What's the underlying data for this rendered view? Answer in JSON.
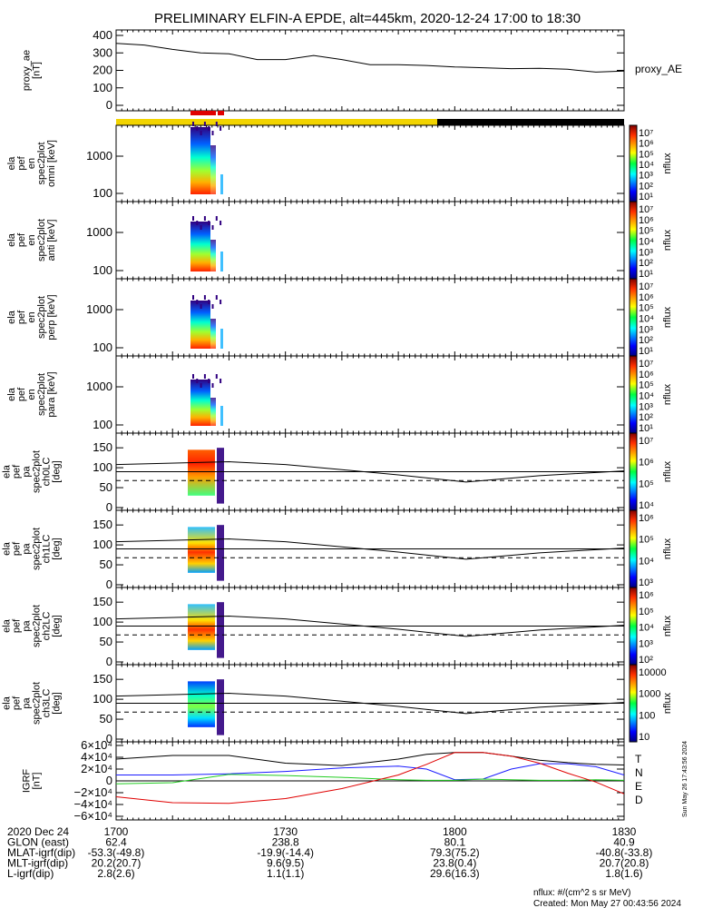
{
  "title": "PRELIMINARY ELFIN-A EPDE, alt=445km, 2020-12-24 17:00 to 18:30",
  "colors": {
    "background": "#ffffff",
    "axis": "#000000",
    "status_yellow": "#f2d400",
    "status_black": "#000000",
    "status_red": "#e00000",
    "igrf_t": "#000000",
    "igrf_n": "#1a1aff",
    "igrf_e": "#22cc22",
    "igrf_d": "#e00000"
  },
  "proxy_ae": {
    "ylabel": "proxy_ae [nT]",
    "legend": "proxy_AE",
    "yticks": [
      "400",
      "300",
      "200",
      "100",
      "0"
    ]
  },
  "spectral_panels": [
    {
      "ylabel": "ela pef en spec2plot omni [keV]",
      "yticks": [
        "1000",
        "100"
      ],
      "colorbar_label": "nflux"
    },
    {
      "ylabel": "ela pef en spec2plot anti [keV]",
      "yticks": [
        "1000",
        "100"
      ],
      "colorbar_label": "nflux"
    },
    {
      "ylabel": "ela pef en spec2plot perp [keV]",
      "yticks": [
        "1000",
        "100"
      ],
      "colorbar_label": "nflux"
    },
    {
      "ylabel": "ela pef en spec2plot para [keV]",
      "yticks": [
        "1000",
        "100"
      ],
      "colorbar_label": "nflux"
    }
  ],
  "pitch_panels": [
    {
      "ylabel": "ela pef pa spec2plot ch0LC [deg]",
      "yticks": [
        "150",
        "100",
        "50",
        "0"
      ],
      "colorbar_label": "nflux"
    },
    {
      "ylabel": "ela pef pa spec2plot ch1LC [deg]",
      "yticks": [
        "150",
        "100",
        "50",
        "0"
      ],
      "colorbar_label": "nflux"
    },
    {
      "ylabel": "ela pef pa spec2plot ch2LC [deg]",
      "yticks": [
        "150",
        "100",
        "50",
        "0"
      ],
      "colorbar_label": "nflux"
    },
    {
      "ylabel": "ela pef pa spec2plot ch3LC [deg]",
      "yticks": [
        "150",
        "100",
        "50",
        "0"
      ],
      "colorbar_label": "nflux"
    }
  ],
  "igrf": {
    "ylabel": "IGRF [nT]",
    "yticks": [
      "6×10⁴",
      "4×10⁴",
      "2×10⁴",
      "0",
      "−2×10⁴",
      "−4×10⁴",
      "−6×10⁴"
    ],
    "legend": [
      "T",
      "N",
      "E",
      "D"
    ]
  },
  "colorbars": [
    {
      "labels": [
        "10⁷",
        "10⁶",
        "10⁵",
        "10⁴",
        "10³",
        "10²",
        "10¹"
      ]
    },
    {
      "labels": [
        "10⁷",
        "10⁶",
        "10⁵",
        "10⁴",
        "10³",
        "10²",
        "10¹"
      ]
    },
    {
      "labels": [
        "10⁷",
        "10⁶",
        "10⁵",
        "10⁴",
        "10³",
        "10²",
        "10¹"
      ]
    },
    {
      "labels": [
        "10⁷",
        "10⁶",
        "10⁵",
        "10⁴",
        "10³",
        "10²",
        "10¹"
      ]
    },
    {
      "labels": [
        "10⁷",
        "10⁶",
        "10⁵",
        "10⁴"
      ]
    },
    {
      "labels": [
        "10⁶",
        "10⁵",
        "10⁴",
        "10³"
      ]
    },
    {
      "labels": [
        "10⁶",
        "10⁵",
        "10⁴",
        "10³",
        "10²"
      ]
    },
    {
      "labels": [
        "10000",
        "1000",
        "100",
        "10"
      ]
    }
  ],
  "xaxis": {
    "rows": [
      {
        "label": "2020 Dec 24",
        "values": [
          "1700",
          "1730",
          "1800",
          "1830"
        ]
      },
      {
        "label": "GLON (east)",
        "values": [
          "62.4",
          "238.8",
          "80.1",
          "40.9"
        ]
      },
      {
        "label": "MLAT-igrf(dip)",
        "values": [
          "-53.3(-49.8)",
          "-19.9(-14.4)",
          "79.3(75.2)",
          "-40.8(-33.8)"
        ]
      },
      {
        "label": "MLT-igrf(dip)",
        "values": [
          "20.2(20.7)",
          "9.6(9.5)",
          "23.8(0.4)",
          "20.7(20.8)"
        ]
      },
      {
        "label": "L-igrf(dip)",
        "values": [
          "2.8(2.6)",
          "1.1(1.1)",
          "29.6(16.3)",
          "1.8(1.6)"
        ]
      }
    ]
  },
  "side_stamp": "Sun May 26 17:43:56 2024",
  "footer": {
    "units": "nflux: #/(cm^2 s sr MeV)",
    "created": "Created: Mon May 27 00:43:56 2024"
  },
  "chart_data": [
    {
      "type": "line",
      "name": "proxy_ae",
      "x": [
        1700,
        1705,
        1710,
        1715,
        1720,
        1725,
        1730,
        1735,
        1740,
        1745,
        1750,
        1755,
        1800,
        1805,
        1810,
        1815,
        1820,
        1825,
        1830
      ],
      "series": [
        {
          "name": "proxy_AE",
          "values": [
            355,
            345,
            320,
            300,
            295,
            262,
            262,
            285,
            262,
            232,
            232,
            228,
            220,
            215,
            210,
            212,
            206,
            190,
            196
          ]
        }
      ],
      "ylim": [
        0,
        400
      ]
    },
    {
      "type": "line",
      "name": "pitch_angle_reference_lines",
      "x": [
        1700,
        1720,
        1730,
        1740,
        1750,
        1802,
        1815,
        1830
      ],
      "series": [
        {
          "values": [
            108,
            115,
            108,
            95,
            82,
            64,
            80,
            92
          ]
        },
        {
          "values": [
            90,
            90,
            90,
            90,
            90,
            90,
            90,
            90
          ]
        },
        {
          "values": [
            68,
            68,
            68,
            68,
            68,
            68,
            68,
            68
          ]
        }
      ],
      "ylim": [
        0,
        180
      ]
    },
    {
      "type": "line",
      "name": "IGRF",
      "x": [
        1700,
        1710,
        1720,
        1730,
        1740,
        1750,
        1755,
        1800,
        1805,
        1810,
        1815,
        1820,
        1825,
        1830
      ],
      "series": [
        {
          "name": "T",
          "values": [
            37000,
            43000,
            43000,
            30000,
            26000,
            37000,
            45000,
            48000,
            48000,
            42000,
            35000,
            31000,
            28000,
            27000
          ]
        },
        {
          "name": "N",
          "values": [
            10000,
            10000,
            12000,
            16000,
            22000,
            25000,
            20000,
            2000,
            3000,
            20000,
            29000,
            29000,
            24000,
            10000
          ]
        },
        {
          "name": "E",
          "values": [
            -5000,
            -3000,
            11000,
            9000,
            6000,
            2000,
            1000,
            1000,
            3000,
            2000,
            1000,
            1000,
            2000,
            1000
          ]
        },
        {
          "name": "D",
          "values": [
            -27000,
            -37000,
            -38000,
            -30000,
            -13000,
            10000,
            28000,
            48000,
            48000,
            42000,
            30000,
            13000,
            -2000,
            -22000
          ]
        }
      ],
      "ylim": [
        -60000,
        60000
      ]
    },
    {
      "type": "heatmap",
      "name": "energy_and_pitch_spectrograms",
      "x_range": [
        1718,
        1722
      ],
      "note_visible": "colored flux interval",
      "zlim": [
        10,
        10000000
      ]
    }
  ]
}
